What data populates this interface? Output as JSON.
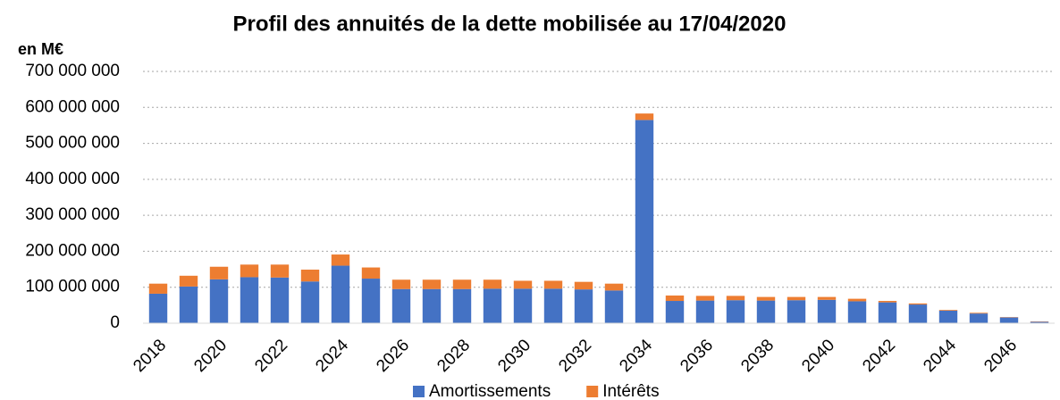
{
  "chart_data": {
    "type": "stacked_bar",
    "title": "Profil des annuités de la dette mobilisée au 17/04/2020",
    "y_label": "en M€",
    "categories": [
      "2018",
      null,
      "2020",
      null,
      "2022",
      null,
      "2024",
      null,
      "2026",
      null,
      "2028",
      null,
      "2030",
      null,
      "2032",
      null,
      "2034",
      null,
      "2036",
      null,
      "2038",
      null,
      "2040",
      null,
      "2042",
      null,
      "2044",
      null,
      "2046",
      null
    ],
    "series": [
      {
        "name": "Amortissements",
        "color": "#4472c4",
        "values": [
          82000000,
          102000000,
          122000000,
          128000000,
          127000000,
          116000000,
          160000000,
          124000000,
          95000000,
          95000000,
          95000000,
          96000000,
          96000000,
          96000000,
          94000000,
          91000000,
          565000000,
          62000000,
          63000000,
          64000000,
          63000000,
          64000000,
          65000000,
          61000000,
          58000000,
          52000000,
          35000000,
          27000000,
          16000000,
          4000000
        ]
      },
      {
        "name": "Intérêts",
        "color": "#ed7d31",
        "values": [
          28000000,
          30000000,
          35000000,
          35000000,
          36000000,
          33000000,
          31000000,
          31000000,
          26000000,
          26000000,
          26000000,
          25000000,
          22000000,
          22000000,
          21000000,
          19000000,
          18000000,
          15000000,
          13000000,
          12000000,
          10000000,
          9000000,
          8000000,
          7000000,
          4000000,
          3000000,
          2000000,
          2000000,
          1000000,
          1000000
        ]
      }
    ],
    "ylim": [
      0,
      700000000
    ],
    "yticks": [
      0,
      {
        "value": 100000000,
        "label": "100 000 000"
      },
      {
        "value": 200000000,
        "label": "200 000 000"
      },
      {
        "value": 300000000,
        "label": "300 000 000"
      },
      {
        "value": 400000000,
        "label": "400 000 000"
      },
      {
        "value": 500000000,
        "label": "500 000 000"
      },
      {
        "value": 600000000,
        "label": "600 000 000"
      },
      {
        "value": 700000000,
        "label": "700 000 000"
      }
    ],
    "grid": true,
    "legend": "bottom"
  }
}
